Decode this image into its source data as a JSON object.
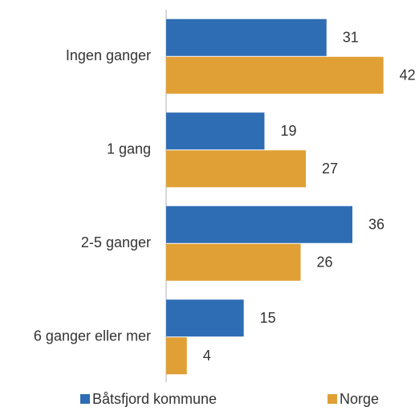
{
  "chart_data": {
    "type": "bar",
    "orientation": "horizontal",
    "categories": [
      "Ingen ganger",
      "1 gang",
      "2-5 ganger",
      "6 ganger eller mer"
    ],
    "series": [
      {
        "name": "Båtsfjord kommune",
        "color": "#2e6db4",
        "values": [
          31,
          19,
          36,
          15
        ]
      },
      {
        "name": "Norge",
        "color": "#e0a035",
        "values": [
          42,
          27,
          26,
          4
        ]
      }
    ],
    "xlim": [
      0,
      45
    ],
    "legend": "bottom"
  }
}
